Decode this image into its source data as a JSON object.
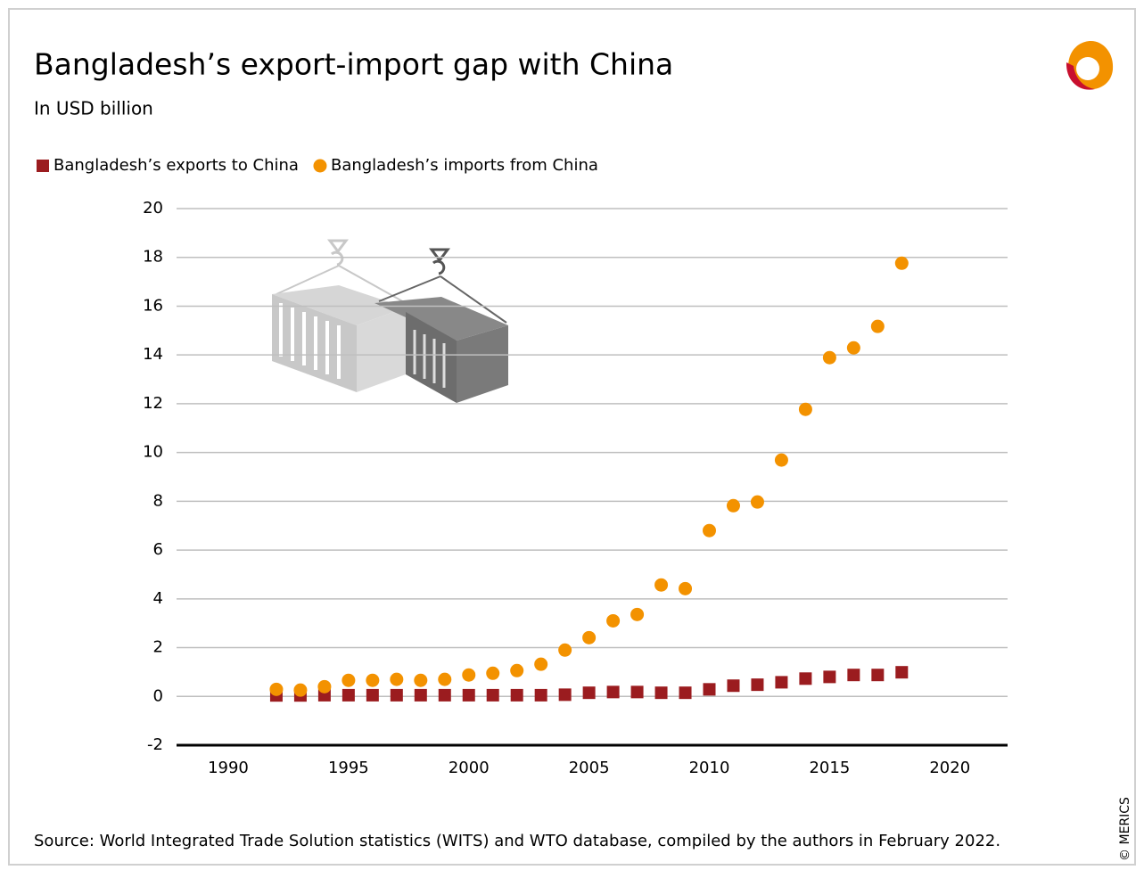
{
  "chart_data": {
    "type": "scatter",
    "title": "Bangladesh’s export-import gap with China",
    "subtitle": "In USD billion",
    "source": "Source: World Integrated Trade Solution statistics (WITS) and WTO database, compiled by the authors in February 2022.",
    "copyright": "© MERICS",
    "x": [
      1992,
      1993,
      1994,
      1995,
      1996,
      1997,
      1998,
      1999,
      2000,
      2001,
      2002,
      2003,
      2004,
      2005,
      2006,
      2007,
      2008,
      2009,
      2010,
      2011,
      2012,
      2013,
      2014,
      2015,
      2016,
      2017,
      2018
    ],
    "series": [
      {
        "name": "Bangladesh’s exports to China",
        "color": "#9b1c1f",
        "marker": "square",
        "values": [
          0.04,
          0.04,
          0.05,
          0.05,
          0.05,
          0.05,
          0.05,
          0.05,
          0.05,
          0.05,
          0.05,
          0.05,
          0.07,
          0.15,
          0.18,
          0.18,
          0.15,
          0.15,
          0.29,
          0.44,
          0.48,
          0.58,
          0.73,
          0.8,
          0.88,
          0.88,
          0.99
        ]
      },
      {
        "name": "Bangladesh’s imports from China",
        "color": "#f39200",
        "marker": "circle",
        "values": [
          0.29,
          0.26,
          0.4,
          0.66,
          0.66,
          0.7,
          0.66,
          0.7,
          0.88,
          0.95,
          1.06,
          1.32,
          1.9,
          2.41,
          3.1,
          3.36,
          4.57,
          4.42,
          6.8,
          7.82,
          7.97,
          9.69,
          11.77,
          13.89,
          14.29,
          15.17,
          17.76
        ]
      }
    ],
    "xlim": [
      1987.85,
      2022.4
    ],
    "xticks": [
      1990,
      1995,
      2000,
      2005,
      2010,
      2015,
      2020
    ],
    "ylim": [
      -2,
      20
    ],
    "yticks": [
      -2,
      0,
      2,
      4,
      6,
      8,
      10,
      12,
      14,
      16,
      18,
      20
    ],
    "grid": true
  }
}
